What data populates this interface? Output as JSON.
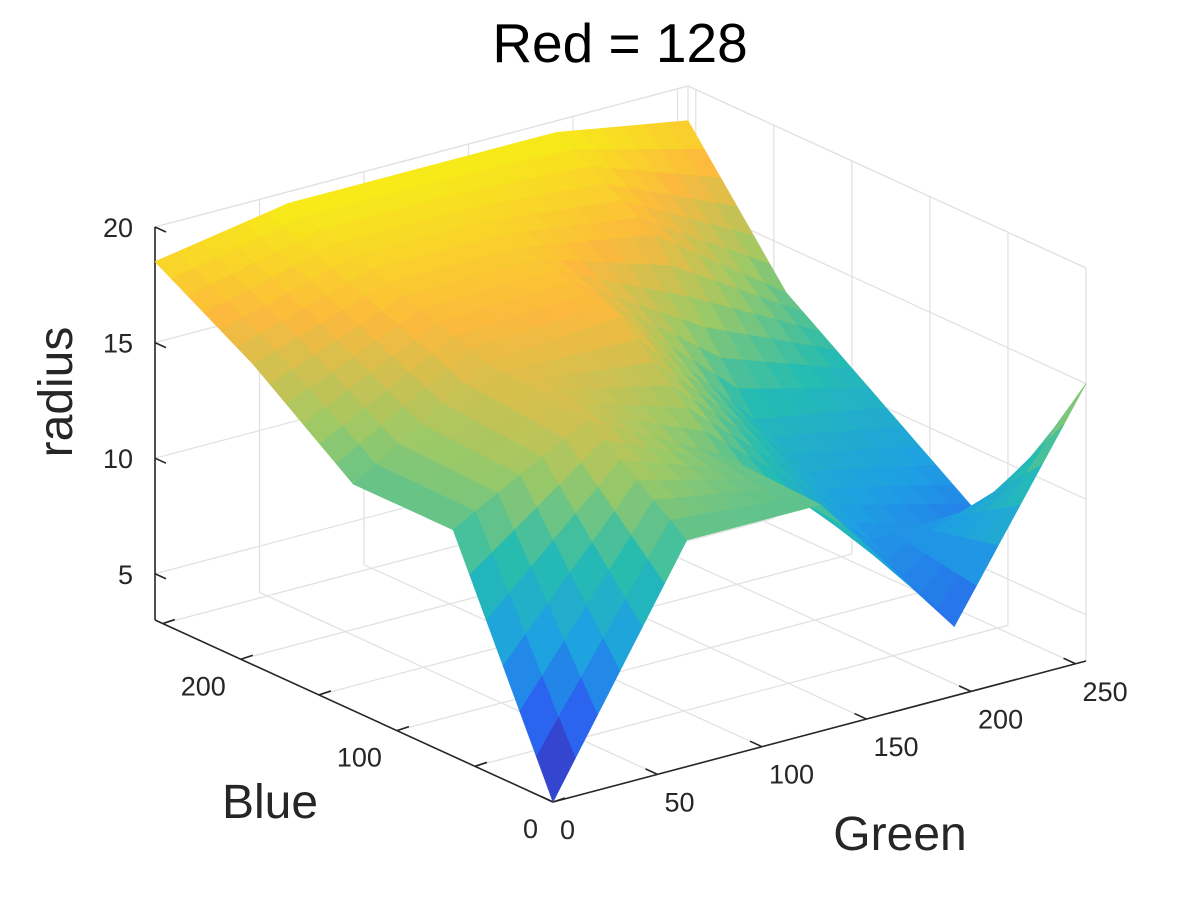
{
  "chart_data": {
    "type": "surface",
    "title": "Red = 128",
    "xlabel": "Green",
    "ylabel": "Blue",
    "zlabel": "radius",
    "x": [
      0,
      64,
      128,
      192,
      255
    ],
    "y": [
      0,
      64,
      128,
      192,
      255
    ],
    "z": [
      [
        3,
        12.8,
        12.8,
        16,
        18.5
      ],
      [
        12.8,
        16,
        16.5,
        18,
        19.5
      ],
      [
        12.8,
        13,
        17,
        18,
        19.5
      ],
      [
        6,
        8.5,
        11,
        17,
        19.5
      ],
      [
        15,
        7,
        10,
        13,
        18.5
      ]
    ],
    "xlim": [
      0,
      255
    ],
    "ylim": [
      0,
      255
    ],
    "zlim": [
      3,
      20
    ],
    "xticks": [
      "0",
      "50",
      "100",
      "150",
      "200",
      "250"
    ],
    "yticks": [
      "0",
      "100",
      "200"
    ],
    "zticks": [
      "5",
      "10",
      "15",
      "20"
    ],
    "grid": true,
    "colormap": [
      "#3e26a8",
      "#2c5ef0",
      "#1ea0e3",
      "#25bcb1",
      "#9dc966",
      "#fcb93d",
      "#f5f80e"
    ]
  }
}
